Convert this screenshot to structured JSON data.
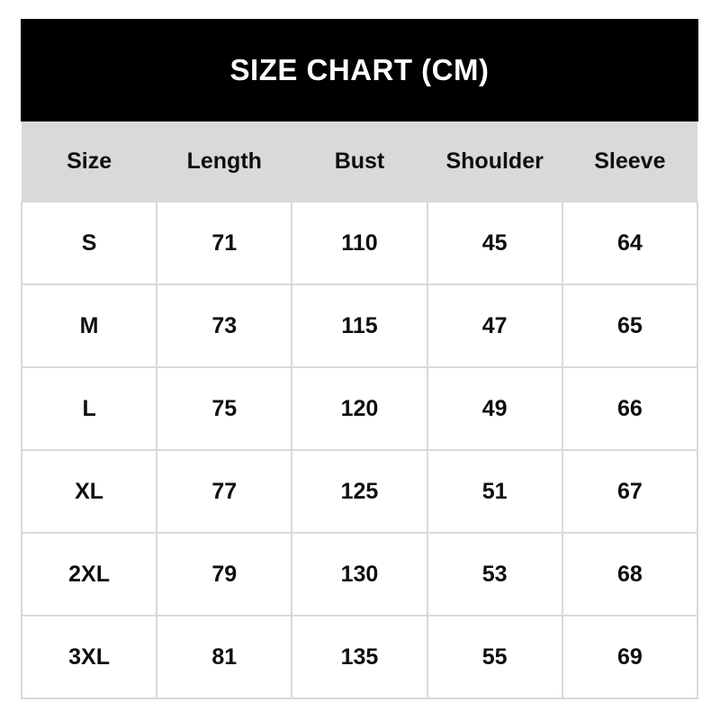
{
  "chart_data": {
    "type": "table",
    "title": "SIZE CHART (CM)",
    "columns": [
      "Size",
      "Length",
      "Bust",
      "Shoulder",
      "Sleeve"
    ],
    "rows": [
      [
        "S",
        "71",
        "110",
        "45",
        "64"
      ],
      [
        "M",
        "73",
        "115",
        "47",
        "65"
      ],
      [
        "L",
        "75",
        "120",
        "49",
        "66"
      ],
      [
        "XL",
        "77",
        "125",
        "51",
        "67"
      ],
      [
        "2XL",
        "79",
        "130",
        "53",
        "68"
      ],
      [
        "3XL",
        "81",
        "135",
        "55",
        "69"
      ]
    ]
  },
  "colors": {
    "banner_bg": "#000000",
    "banner_text": "#ffffff",
    "header_bg": "#d9d9d9",
    "cell_border": "#d9d9d9",
    "text": "#0f0f0f",
    "page_bg": "#ffffff"
  }
}
